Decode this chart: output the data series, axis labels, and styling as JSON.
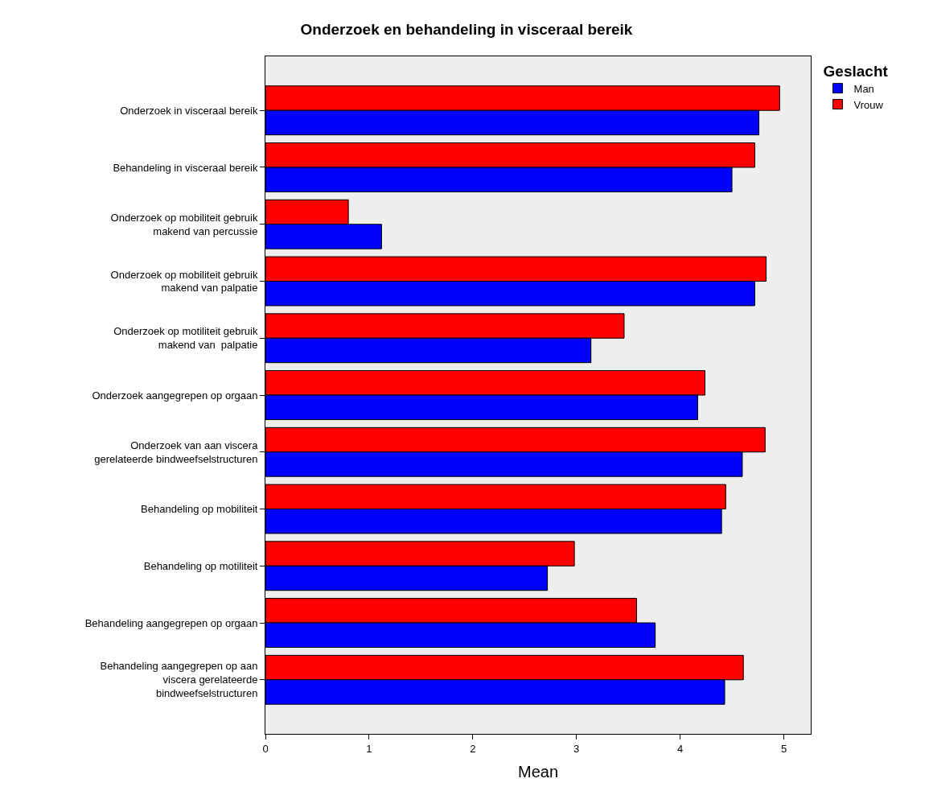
{
  "chart_data": {
    "type": "bar",
    "orientation": "horizontal",
    "title": "Onderzoek en behandeling in visceraal bereik",
    "xlabel": "Mean",
    "legend_title": "Geslacht",
    "legend": "top right",
    "categories": [
      "Onderzoek in visceraal bereik",
      "Behandeling in visceraal bereik",
      "Onderzoek op mobiliteit gebruik\nmakend van percussie",
      "Onderzoek op mobiliteit gebruik\nmakend van palpatie",
      "Onderzoek op motiliteit gebruik\nmakend van  palpatie",
      "Onderzoek aangegrepen op orgaan",
      "Onderzoek van aan viscera\ngerelateerde bindweefselstructuren",
      "Behandeling op mobiliteit",
      "Behandeling op motiliteit",
      "Behandeling aangegrepen op orgaan",
      "Behandeling aangegrepen op aan\nviscera gerelateerde\nbindweefselstructuren"
    ],
    "series": [
      {
        "name": "Man",
        "color": "#0000ff",
        "values": [
          4.76,
          4.5,
          1.12,
          4.72,
          3.14,
          4.17,
          4.6,
          4.4,
          2.72,
          3.76,
          4.43
        ]
      },
      {
        "name": "Vrouw",
        "color": "#ff0000",
        "values": [
          4.96,
          4.72,
          0.8,
          4.83,
          3.46,
          4.24,
          4.82,
          4.44,
          2.98,
          3.58,
          4.61
        ]
      }
    ],
    "xlim": [
      0,
      5.26
    ],
    "xticks": [
      0,
      1,
      2,
      3,
      4,
      5
    ],
    "grid": false
  }
}
